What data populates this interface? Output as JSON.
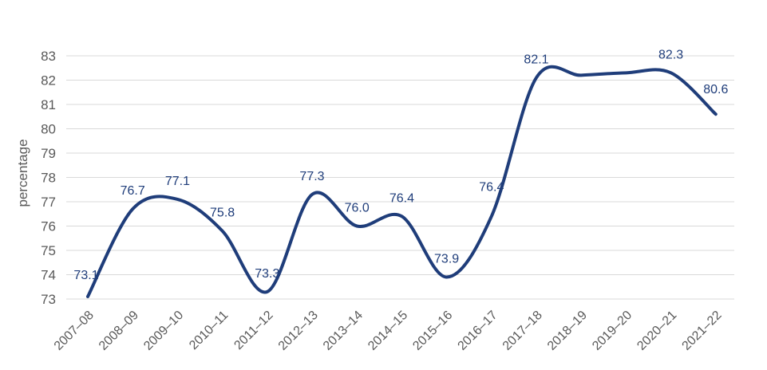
{
  "chart_data": {
    "type": "line",
    "categories": [
      "2007–08",
      "2008–09",
      "2009–10",
      "2010–11",
      "2011–12",
      "2012–13",
      "2013–14",
      "2014–15",
      "2015–16",
      "2016–17",
      "2017–18",
      "2018–19",
      "2019–20",
      "2020–21",
      "2021–22"
    ],
    "values": [
      73.1,
      76.7,
      77.1,
      75.8,
      73.3,
      77.3,
      76.0,
      76.4,
      73.9,
      76.4,
      82.1,
      82.2,
      82.3,
      82.3,
      80.6
    ],
    "data_labels": [
      "73.1",
      "76.7",
      "77.1",
      "75.8",
      "73.3",
      "77.3",
      "76.0",
      "76.4",
      "73.9",
      "76.4",
      "82.1",
      "",
      "",
      "82.3",
      "80.6"
    ],
    "ylabel": "percentage",
    "ylim": [
      73,
      83
    ],
    "yticks": [
      "73",
      "74",
      "75",
      "76",
      "77",
      "78",
      "79",
      "80",
      "81",
      "82",
      "83"
    ],
    "grid": true,
    "line_color": "#1f3d7a"
  }
}
